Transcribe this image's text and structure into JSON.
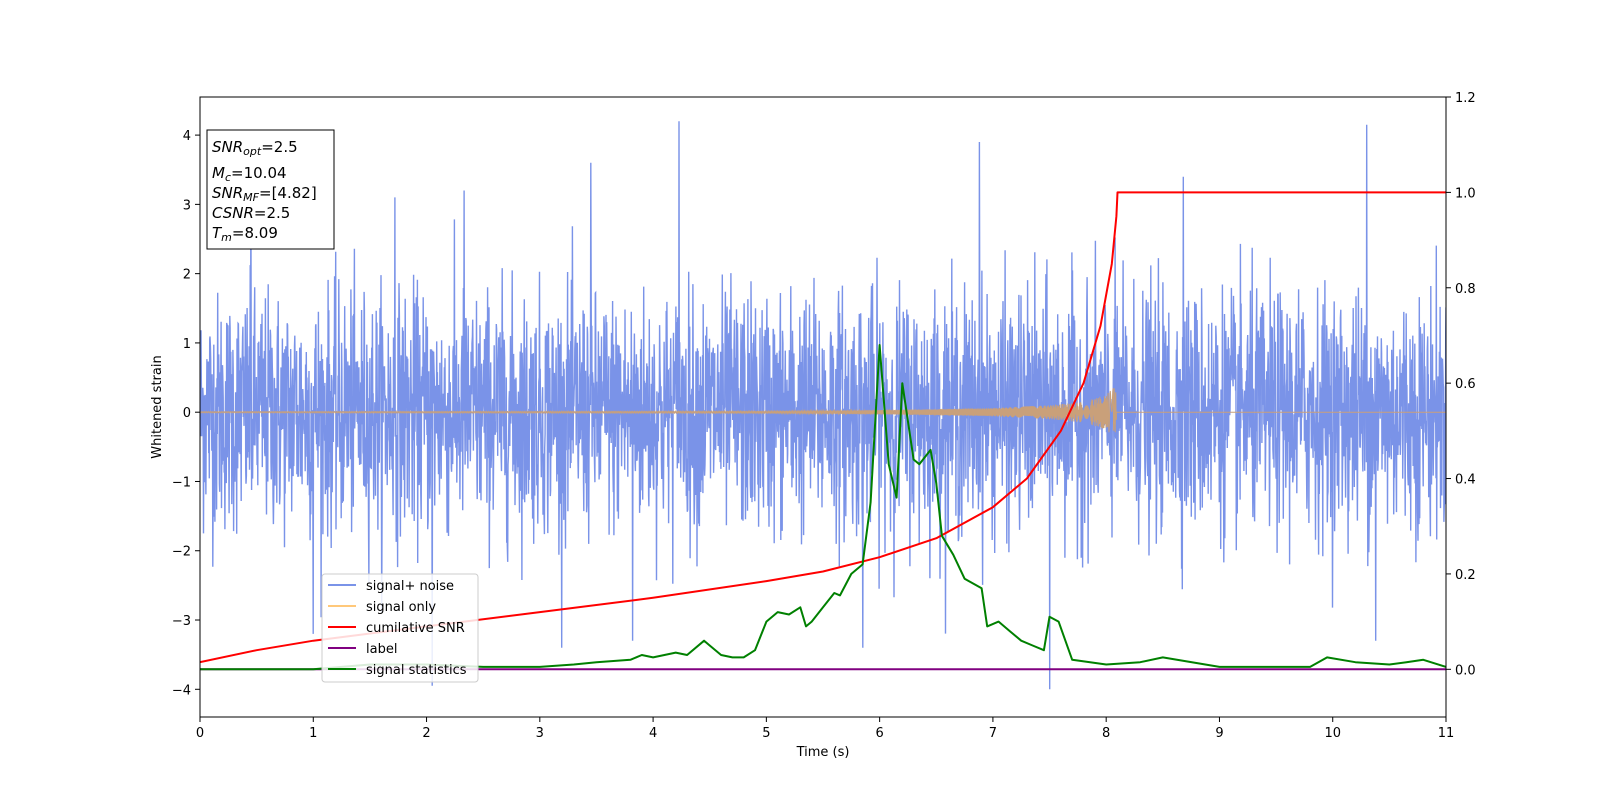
{
  "chart_data": {
    "type": "line",
    "xlabel": "Time (s)",
    "ylabel": "Whitened strain",
    "xlim": [
      0,
      11
    ],
    "ylim_left": [
      -4.4,
      4.55
    ],
    "ylim_right": [
      -0.1,
      1.2
    ],
    "x_ticks": [
      "0",
      "1",
      "2",
      "3",
      "4",
      "5",
      "6",
      "7",
      "8",
      "9",
      "10",
      "11"
    ],
    "y_ticks_left": [
      "−4",
      "−3",
      "−2",
      "−1",
      "0",
      "1",
      "2",
      "3",
      "4"
    ],
    "y_ticks_right": [
      "0.0",
      "0.2",
      "0.4",
      "0.6",
      "0.8",
      "1.0",
      "1.2"
    ],
    "grid": false,
    "legend_position": "lower-left",
    "colors": {
      "signal_noise": "#7a93e8",
      "signal_only": "#ffc87a",
      "signal_only_drawn": "#c9a07a",
      "cumulative_snr": "#ff0000",
      "label": "#800080",
      "signal_statistics": "#008000"
    },
    "series": [
      {
        "name": "signal+ noise",
        "axis": "left",
        "description_type": "noise",
        "noise_std": 0.85,
        "range": [
          -4.0,
          4.2
        ],
        "spikes": [
          [
            0.45,
            3.4
          ],
          [
            1.72,
            3.1
          ],
          [
            2.33,
            3.2
          ],
          [
            3.45,
            3.6
          ],
          [
            4.23,
            4.2
          ],
          [
            6.88,
            3.9
          ],
          [
            8.68,
            3.4
          ],
          [
            10.3,
            4.15
          ],
          [
            1.0,
            -3.2
          ],
          [
            2.05,
            -3.95
          ],
          [
            3.82,
            -3.3
          ],
          [
            5.85,
            -3.4
          ],
          [
            7.5,
            -4.0
          ],
          [
            10.38,
            -3.3
          ]
        ]
      },
      {
        "name": "signal only",
        "axis": "left",
        "x": [
          0,
          5,
          6,
          7,
          7.5,
          7.8,
          8.0,
          8.09
        ],
        "envelope": [
          0.01,
          0.015,
          0.03,
          0.06,
          0.1,
          0.15,
          0.25,
          0.4
        ]
      },
      {
        "name": "cumilative SNR",
        "axis": "right",
        "x": [
          0,
          0.5,
          1,
          2,
          3,
          4,
          5,
          5.5,
          6,
          6.5,
          7,
          7.3,
          7.6,
          7.8,
          7.95,
          8.05,
          8.09,
          8.1,
          11
        ],
        "values": [
          0.015,
          0.04,
          0.06,
          0.09,
          0.12,
          0.15,
          0.185,
          0.205,
          0.235,
          0.275,
          0.34,
          0.4,
          0.5,
          0.6,
          0.72,
          0.85,
          0.95,
          1.0,
          1.0
        ]
      },
      {
        "name": "label",
        "axis": "right",
        "x": [
          0,
          11
        ],
        "values": [
          0.0,
          0.0
        ]
      },
      {
        "name": "signal statistics",
        "axis": "right",
        "x": [
          0,
          0.5,
          1,
          1.5,
          2,
          2.5,
          3,
          3.3,
          3.5,
          3.8,
          3.9,
          4,
          4.2,
          4.3,
          4.45,
          4.5,
          4.6,
          4.7,
          4.8,
          4.9,
          5,
          5.1,
          5.2,
          5.3,
          5.35,
          5.4,
          5.5,
          5.6,
          5.65,
          5.75,
          5.85,
          5.92,
          6,
          6.08,
          6.15,
          6.2,
          6.3,
          6.35,
          6.45,
          6.5,
          6.55,
          6.65,
          6.75,
          6.9,
          6.95,
          7.05,
          7.15,
          7.25,
          7.35,
          7.45,
          7.5,
          7.58,
          7.7,
          8,
          8.3,
          8.5,
          9,
          9.4,
          9.8,
          9.95,
          10.2,
          10.5,
          10.65,
          10.8,
          11
        ],
        "values": [
          0.0,
          0.0,
          0.0,
          0.01,
          0.01,
          0.005,
          0.005,
          0.01,
          0.015,
          0.02,
          0.03,
          0.025,
          0.035,
          0.03,
          0.06,
          0.05,
          0.03,
          0.025,
          0.025,
          0.04,
          0.1,
          0.12,
          0.115,
          0.13,
          0.09,
          0.1,
          0.13,
          0.16,
          0.155,
          0.2,
          0.22,
          0.35,
          0.68,
          0.43,
          0.36,
          0.6,
          0.44,
          0.43,
          0.46,
          0.39,
          0.28,
          0.24,
          0.19,
          0.17,
          0.09,
          0.1,
          0.08,
          0.06,
          0.05,
          0.04,
          0.11,
          0.1,
          0.02,
          0.01,
          0.015,
          0.025,
          0.005,
          0.005,
          0.005,
          0.025,
          0.015,
          0.01,
          0.015,
          0.02,
          0.005
        ]
      }
    ]
  },
  "info_box": {
    "snr_opt": {
      "base": "SNR",
      "sub": "opt",
      "value": "=2.5"
    },
    "mc": {
      "base": "M",
      "sub": "c",
      "value": "=10.04"
    },
    "snr_mf": {
      "base": "SNR",
      "sub": "MF",
      "value": "=[4.82]"
    },
    "csnr": {
      "base": "CSNR",
      "value": "=2.5"
    },
    "tm": {
      "base": "T",
      "sub": "m",
      "value": "=8.09"
    }
  }
}
